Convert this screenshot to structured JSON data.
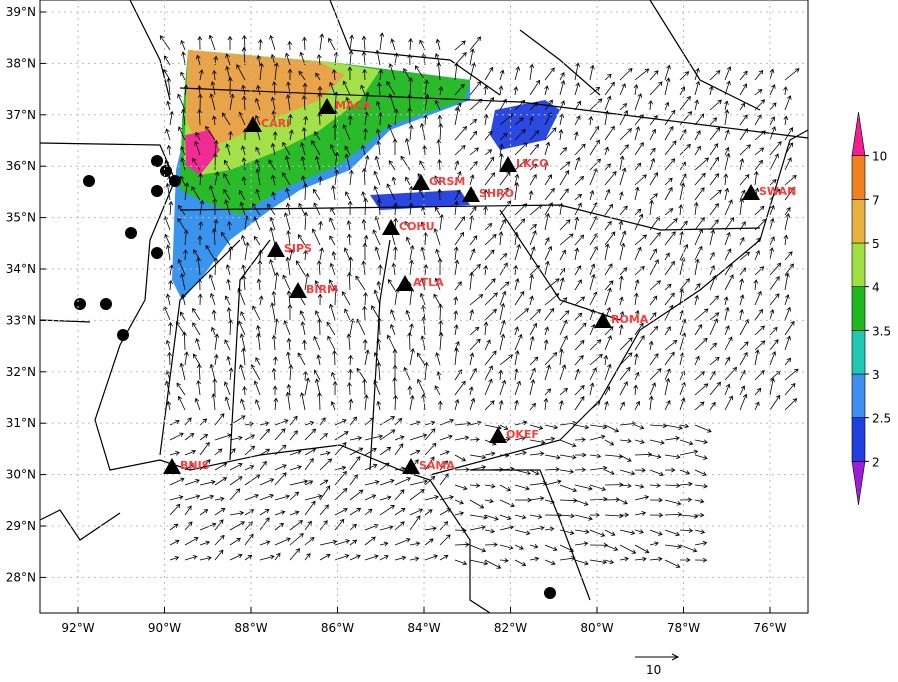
{
  "map": {
    "lat_ticks": [
      {
        "value": 39,
        "label": "39°N"
      },
      {
        "value": 38,
        "label": "38°N"
      },
      {
        "value": 37,
        "label": "37°N"
      },
      {
        "value": 36,
        "label": "36°N"
      },
      {
        "value": 35,
        "label": "35°N"
      },
      {
        "value": 34,
        "label": "34°N"
      },
      {
        "value": 33,
        "label": "33°N"
      },
      {
        "value": 32,
        "label": "32°N"
      },
      {
        "value": 31,
        "label": "31°N"
      },
      {
        "value": 30,
        "label": "30°N"
      },
      {
        "value": 29,
        "label": "29°N"
      },
      {
        "value": 28,
        "label": "28°N"
      }
    ],
    "lon_ticks": [
      {
        "value": 92,
        "label": "92°W"
      },
      {
        "value": 90,
        "label": "90°W"
      },
      {
        "value": 88,
        "label": "88°W"
      },
      {
        "value": 86,
        "label": "86°W"
      },
      {
        "value": 84,
        "label": "84°W"
      },
      {
        "value": 82,
        "label": "82°W"
      },
      {
        "value": 80,
        "label": "80°W"
      },
      {
        "value": 78,
        "label": "78°W"
      },
      {
        "value": 76,
        "label": "76°W"
      }
    ],
    "stations": [
      "MACA",
      "CARI",
      "GRSM",
      "LKCO",
      "SHRO",
      "SWAN",
      "COHU",
      "SIPS",
      "ATLA",
      "BIRM",
      "ROMA",
      "OKEF",
      "SAMA",
      "BNIS"
    ],
    "colorbar": {
      "levels": [
        2,
        2.5,
        3,
        3.5,
        4,
        5,
        7,
        10
      ],
      "colors": [
        "#9b1fd6",
        "#1f3fe0",
        "#3f8ff0",
        "#1fc8b0",
        "#1fb81f",
        "#9fe040",
        "#e8b040",
        "#f08020",
        "#f0208f"
      ]
    },
    "reference_vector": "10"
  }
}
